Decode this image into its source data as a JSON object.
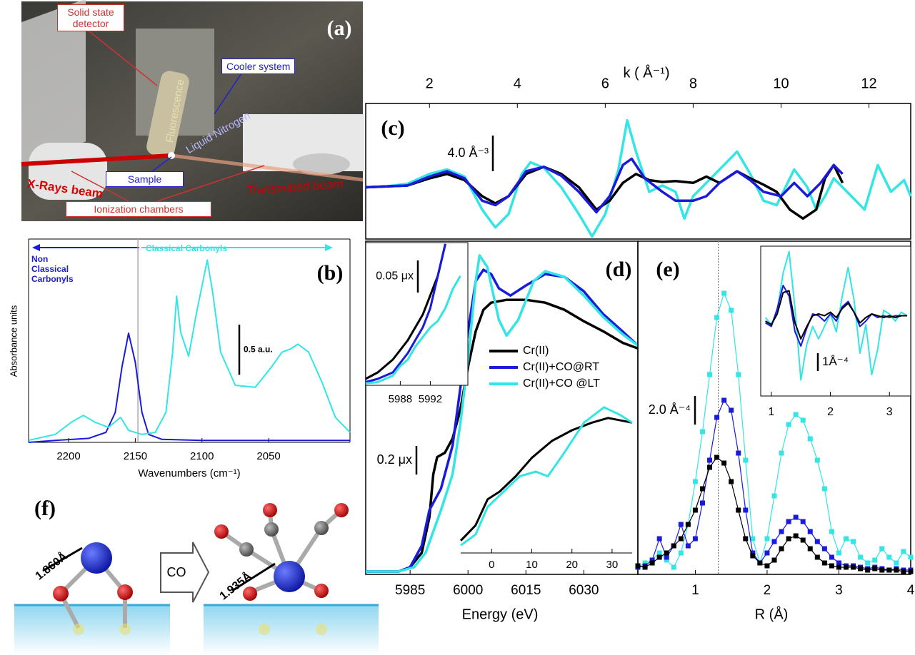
{
  "photo": {
    "label": "(a)",
    "callouts": [
      "Solid state detector",
      "Cooler system",
      "Fluorescence",
      "Liquid Nitrogen",
      "X-Rays beam",
      "Sample",
      "Transmitted beam",
      "Ionization chambers"
    ]
  },
  "diagram": {
    "label": "(f)",
    "bond_before": "1.860Å",
    "bond_after": "1.935Å",
    "reagent": "CO"
  },
  "chart_data": [
    {
      "type": "line",
      "label": "(b)",
      "xlabel": "Wavenumbers (cm⁻¹)",
      "ylabel": "Absorbance units",
      "annotations": [
        "Non Classical Carbonyls",
        "Classical Carbonyls"
      ],
      "xlim": [
        2230,
        1989
      ],
      "ylim": [
        0,
        2.03
      ],
      "xticks": [
        2200,
        2150,
        2100,
        2050
      ],
      "reference_x": 2148,
      "scale_bar": {
        "value": 0.5,
        "label": "0.5 a.u."
      },
      "series": [
        {
          "color": "#1a1adc",
          "x": [
            2230,
            2210,
            2185,
            2172,
            2165,
            2160,
            2155,
            2150,
            2145,
            2140,
            2130,
            2100,
            2050,
            1989
          ],
          "values": [
            0.0,
            0.02,
            0.04,
            0.1,
            0.3,
            0.75,
            1.09,
            0.8,
            0.3,
            0.08,
            0.03,
            0.02,
            0.02,
            0.02
          ]
        },
        {
          "color": "#33e5e5",
          "x": [
            2230,
            2210,
            2198,
            2189,
            2180,
            2170,
            2161,
            2155,
            2145,
            2135,
            2127,
            2122,
            2119,
            2116,
            2110,
            2104,
            2096,
            2092,
            2086,
            2075,
            2060,
            2048,
            2040,
            2034,
            2028,
            2020,
            2010,
            2000,
            1989
          ],
          "values": [
            0.02,
            0.08,
            0.2,
            0.27,
            0.2,
            0.15,
            0.25,
            0.12,
            0.08,
            0.1,
            0.3,
            0.9,
            1.46,
            1.1,
            0.86,
            1.3,
            1.82,
            1.5,
            0.9,
            0.57,
            0.55,
            0.75,
            0.9,
            0.93,
            0.98,
            0.9,
            0.6,
            0.25,
            0.1
          ]
        }
      ]
    },
    {
      "type": "line",
      "label": "(c)",
      "xlabel": "k ( Å⁻¹)",
      "xlim": [
        0.55,
        12.95
      ],
      "ylim": [
        -5.8,
        9.4
      ],
      "xticks": [
        2,
        4,
        6,
        8,
        10,
        12
      ],
      "scale_bar": {
        "value": 4.0,
        "label": "4.0 Å⁻³"
      },
      "series": [
        {
          "color": "#33e5e5",
          "x": [
            0.55,
            1,
            1.5,
            2,
            2.4,
            2.8,
            3.2,
            3.5,
            3.8,
            4.1,
            4.3,
            4.6,
            5,
            5.4,
            5.7,
            6,
            6.3,
            6.5,
            6.7,
            7,
            7.3,
            7.6,
            7.8,
            8,
            8.3,
            8.7,
            9,
            9.3,
            9.6,
            9.9,
            10.3,
            10.6,
            10.8,
            11,
            11.2,
            11.6,
            11.9,
            12.2,
            12.5,
            12.8,
            12.95
          ],
          "values": [
            0,
            0.1,
            0.4,
            1.5,
            2.0,
            1.2,
            -2.5,
            -4.5,
            -3.0,
            1.5,
            2.8,
            2.2,
            0,
            -3,
            -5.5,
            -3,
            2,
            7.5,
            4,
            -0.5,
            0.2,
            -0.5,
            -3.5,
            -1,
            0.5,
            2.5,
            4,
            1.5,
            -1.5,
            -2,
            2,
            0,
            -2.5,
            -1,
            1,
            -1,
            -2.5,
            2.5,
            -0.5,
            0.8,
            -1
          ]
        },
        {
          "color": "#000000",
          "x": [
            0.55,
            1.5,
            2,
            2.4,
            2.8,
            3.2,
            3.5,
            3.8,
            4.2,
            4.6,
            5,
            5.4,
            5.8,
            6.1,
            6.4,
            6.7,
            7,
            7.3,
            7.6,
            8,
            8.3,
            8.6,
            9,
            9.3,
            9.6,
            9.9,
            10.2,
            10.5,
            10.8,
            11,
            11.2,
            11.4
          ],
          "values": [
            0,
            0.2,
            1.0,
            1.5,
            0.8,
            -1,
            -1.8,
            -1,
            1.5,
            2.3,
            1.5,
            0,
            -2.5,
            -1.5,
            0.5,
            1.5,
            0.8,
            0.6,
            0.7,
            0.5,
            1.2,
            0.5,
            1.8,
            1.0,
            0.3,
            -0.5,
            -2.5,
            -3.5,
            -2.5,
            1.0,
            2.5,
            0.5
          ]
        },
        {
          "color": "#1a1adc",
          "x": [
            0.55,
            1.5,
            2,
            2.4,
            2.8,
            3.2,
            3.5,
            3.8,
            4.2,
            4.6,
            5,
            5.4,
            5.8,
            6.1,
            6.4,
            6.6,
            6.9,
            7.3,
            7.6,
            8,
            8.3,
            8.6,
            9,
            9.3,
            9.6,
            10,
            10.3,
            10.6,
            10.9,
            11.2,
            11.4
          ],
          "values": [
            0,
            0.2,
            1.2,
            1.8,
            1.0,
            -1.5,
            -2.0,
            -1,
            1.8,
            2.3,
            1.3,
            -0.5,
            -2.8,
            -1,
            2.5,
            3.2,
            1.0,
            -0.5,
            -1.5,
            -1.5,
            -1.0,
            0.5,
            1.8,
            0.8,
            -0.5,
            -1.0,
            0.5,
            -1,
            0.5,
            2.5,
            1.5
          ]
        }
      ]
    },
    {
      "type": "line",
      "label": "(d)",
      "xlabel": "Energy (eV)",
      "xlim": [
        5973.5,
        6044
      ],
      "ylim": [
        0,
        2.33
      ],
      "xticks": [
        5985,
        6000,
        6015,
        6030
      ],
      "scale_bar": {
        "value": 0.2,
        "label": "0.2 μx"
      },
      "legend": "right",
      "series": [
        {
          "name": "Cr(II)",
          "color": "#000000",
          "x": [
            5973.5,
            5982,
            5985,
            5988,
            5990,
            5991,
            5992,
            5994,
            5996,
            5998,
            6000,
            6002,
            6004,
            6006,
            6010,
            6015,
            6020,
            6025,
            6030,
            6035,
            6040,
            6044
          ],
          "values": [
            0.02,
            0.02,
            0.05,
            0.15,
            0.4,
            0.7,
            0.82,
            0.85,
            0.95,
            1.15,
            1.45,
            1.7,
            1.85,
            1.9,
            1.92,
            1.92,
            1.9,
            1.85,
            1.77,
            1.7,
            1.62,
            1.58
          ]
        },
        {
          "name": "Cr(II)+CO@RT",
          "color": "#1a1adc",
          "x": [
            5973.5,
            5982,
            5985,
            5988,
            5990,
            5991,
            5993,
            5996,
            5998,
            6000,
            6002,
            6004,
            6006,
            6008,
            6011,
            6015,
            6020,
            6025,
            6030,
            6035,
            6040,
            6044
          ],
          "values": [
            0.02,
            0.02,
            0.05,
            0.2,
            0.45,
            0.5,
            0.6,
            0.9,
            1.3,
            1.7,
            2.05,
            2.13,
            2.1,
            2.0,
            1.95,
            2.02,
            2.1,
            2.08,
            1.98,
            1.82,
            1.7,
            1.6
          ]
        },
        {
          "name": "Cr(II)+CO @LT",
          "color": "#33e5e5",
          "x": [
            5973.5,
            5982,
            5986,
            5989,
            5991,
            5993,
            5996,
            5998,
            6000,
            6002,
            6003,
            6005,
            6008,
            6010,
            6013,
            6017,
            6020,
            6025,
            6030,
            6035,
            6040,
            6044
          ],
          "values": [
            0.02,
            0.02,
            0.05,
            0.15,
            0.3,
            0.45,
            0.7,
            1.05,
            1.5,
            2.05,
            2.23,
            2.15,
            1.78,
            1.67,
            1.78,
            2.05,
            2.12,
            2.08,
            1.95,
            1.8,
            1.68,
            1.6
          ]
        }
      ]
    },
    {
      "type": "line",
      "xlim": [
        5983.4,
        5997
      ],
      "ylim": [
        0,
        0.222
      ],
      "xticks": [
        5988,
        5992
      ],
      "scale_bar": {
        "value": 0.05,
        "label": "0.05 μx"
      },
      "series": [
        {
          "color": "#000000",
          "x": [
            5983.4,
            5985,
            5987,
            5988,
            5989,
            5990,
            5991,
            5992,
            5993,
            5994
          ],
          "values": [
            0.01,
            0.02,
            0.04,
            0.055,
            0.07,
            0.09,
            0.11,
            0.14,
            0.17,
            0.22
          ]
        },
        {
          "color": "#1a1adc",
          "x": [
            5983.4,
            5985,
            5987,
            5988,
            5989,
            5990,
            5991,
            5992,
            5993,
            5994
          ],
          "values": [
            0.005,
            0.01,
            0.02,
            0.035,
            0.05,
            0.07,
            0.09,
            0.12,
            0.17,
            0.22
          ]
        },
        {
          "color": "#33e5e5",
          "x": [
            5983.4,
            5985,
            5987,
            5988,
            5989,
            5990,
            5991,
            5992,
            5993,
            5994,
            5995,
            5996
          ],
          "values": [
            0.003,
            0.005,
            0.015,
            0.03,
            0.04,
            0.06,
            0.075,
            0.09,
            0.1,
            0.12,
            0.15,
            0.17
          ]
        }
      ]
    },
    {
      "type": "line",
      "xlim": [
        -7.7,
        35
      ],
      "ylim": [
        0,
        1
      ],
      "xticks": [
        0,
        10,
        20,
        30
      ],
      "series": [
        {
          "color": "#000000",
          "x": [
            -7.7,
            -4,
            -1,
            2,
            6,
            10,
            15,
            20,
            25,
            29,
            35
          ],
          "values": [
            0.08,
            0.18,
            0.35,
            0.4,
            0.5,
            0.62,
            0.73,
            0.8,
            0.85,
            0.88,
            0.85
          ]
        },
        {
          "color": "#33e5e5",
          "x": [
            -7.7,
            -4,
            -1,
            3,
            7,
            11,
            14,
            18,
            23,
            28,
            32,
            35
          ],
          "values": [
            0.05,
            0.12,
            0.3,
            0.4,
            0.5,
            0.53,
            0.5,
            0.65,
            0.85,
            0.95,
            0.9,
            0.85
          ]
        }
      ]
    },
    {
      "type": "line",
      "label": "(e)",
      "xlabel": "R (Å)",
      "markers": "square",
      "xlim": [
        0.2,
        4.0
      ],
      "ylim": [
        0,
        23.35
      ],
      "xticks": [
        1,
        2,
        3,
        4
      ],
      "reference_x": 1.32,
      "scale_bar": {
        "value": 2.0,
        "label": "2.0 Å⁻⁴"
      },
      "x": [
        0.2,
        0.3,
        0.4,
        0.5,
        0.6,
        0.7,
        0.8,
        0.9,
        1.0,
        1.1,
        1.2,
        1.3,
        1.4,
        1.5,
        1.6,
        1.7,
        1.8,
        1.9,
        2.0,
        2.1,
        2.2,
        2.3,
        2.4,
        2.5,
        2.6,
        2.7,
        2.8,
        2.9,
        3.0,
        3.1,
        3.2,
        3.3,
        3.4,
        3.5,
        3.6,
        3.7,
        3.8,
        3.9,
        4.0
      ],
      "series": [
        {
          "color": "#33e5e5",
          "values": [
            0.5,
            0.8,
            1.0,
            1.5,
            1.0,
            0.5,
            1.5,
            3.5,
            6.5,
            10,
            14,
            18,
            19.7,
            18.5,
            14,
            8,
            2.5,
            0.8,
            2.5,
            5.5,
            8.5,
            10.5,
            11.2,
            10.8,
            9.5,
            8,
            6,
            3,
            1.5,
            2.5,
            2.3,
            1.2,
            0.8,
            1.0,
            1.8,
            1.2,
            0.8,
            1.6,
            1.2
          ]
        },
        {
          "color": "#1a1adc",
          "values": [
            0.5,
            0.6,
            1.0,
            2.5,
            1.2,
            2.0,
            3.5,
            2.0,
            2.5,
            5,
            8,
            11,
            12.2,
            11.5,
            8.5,
            4.5,
            1.5,
            0.8,
            1.5,
            2.3,
            3.0,
            3.7,
            4.0,
            3.7,
            3.0,
            2.3,
            1.8,
            1.2,
            0.8,
            0.6,
            0.6,
            0.5,
            0.4,
            0.5,
            0.4,
            0.3,
            0.4,
            0.3,
            0.3
          ]
        },
        {
          "color": "#000000",
          "values": [
            0.6,
            0.5,
            0.8,
            1.2,
            1.5,
            2.0,
            2.5,
            3.5,
            4.5,
            6.0,
            7.5,
            8.2,
            7.8,
            6.5,
            4.5,
            2.5,
            1.3,
            0.8,
            0.6,
            1.0,
            1.8,
            2.5,
            2.7,
            2.4,
            1.8,
            1.2,
            0.8,
            0.6,
            0.5,
            0.5,
            0.5,
            0.4,
            0.3,
            0.4,
            0.3,
            0.3,
            0.3,
            0.2,
            0.2
          ]
        }
      ]
    },
    {
      "type": "line",
      "xlim": [
        0.82,
        3.36
      ],
      "ylim": [
        -4.4,
        4.0
      ],
      "xticks": [
        1,
        2,
        3
      ],
      "scale_bar": {
        "value": 1,
        "label": "1Å⁻⁴"
      },
      "x": [
        0.9,
        1.0,
        1.1,
        1.2,
        1.3,
        1.4,
        1.5,
        1.6,
        1.7,
        1.8,
        1.9,
        2.0,
        2.1,
        2.2,
        2.3,
        2.4,
        2.5,
        2.6,
        2.7,
        2.8,
        2.9,
        3.0,
        3.1,
        3.2,
        3.3
      ],
      "series": [
        {
          "color": "#33e5e5",
          "values": [
            0,
            -0.4,
            0.4,
            2.5,
            3.7,
            0.5,
            -3.5,
            -1.5,
            -0.5,
            -1.2,
            -0.5,
            0.2,
            -0.8,
            1.2,
            2.8,
            1.0,
            -2.0,
            -0.4,
            -3.2,
            -1.8,
            0.4,
            0.2,
            -0.2,
            0.3,
            0.1
          ]
        },
        {
          "color": "#1a1adc",
          "values": [
            -0.3,
            -0.5,
            0.5,
            1.8,
            1.2,
            -0.8,
            -1.6,
            -0.6,
            0.2,
            0.1,
            -0.2,
            0.2,
            -0.2,
            0.6,
            0.9,
            0.3,
            -0.5,
            -0.2,
            0.2,
            0,
            0.1,
            0,
            0.1,
            0.1,
            0.1
          ]
        },
        {
          "color": "#000000",
          "values": [
            -0.2,
            -0.4,
            0.2,
            1.4,
            1.5,
            -0.3,
            -1.2,
            -0.5,
            0.1,
            0.2,
            0.1,
            0.3,
            0,
            0.5,
            0.8,
            0.3,
            -0.3,
            0,
            0.2,
            0.1,
            0,
            0.1,
            0,
            0.1,
            0.1
          ]
        }
      ]
    }
  ]
}
